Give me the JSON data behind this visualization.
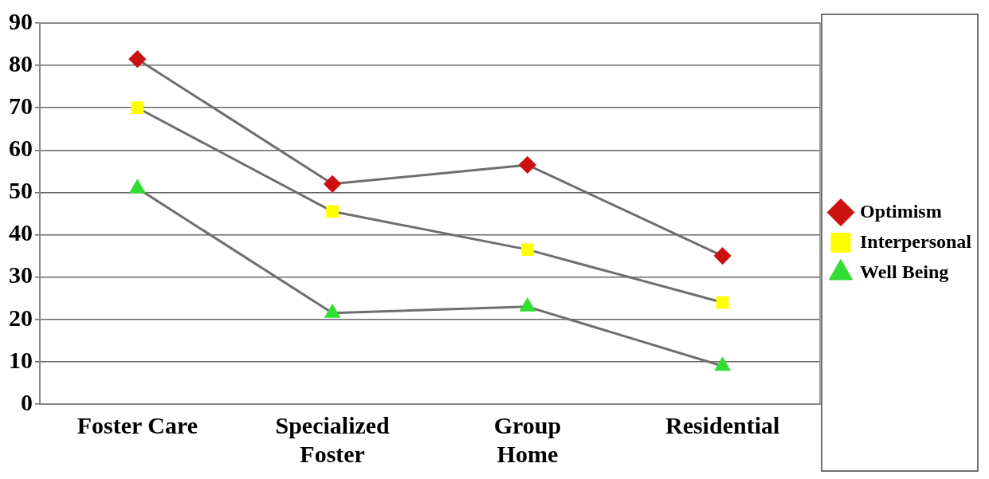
{
  "chart_data": {
    "type": "line",
    "categories": [
      "Foster Care",
      [
        "Specialized",
        "Foster"
      ],
      [
        "Group",
        "Home"
      ],
      "Residential"
    ],
    "series": [
      {
        "name": "Optimism",
        "color": "#cc1111",
        "marker": "diamond",
        "values": [
          81.5,
          52,
          56.5,
          35
        ]
      },
      {
        "name": "Interpersonal",
        "color": "#ffff00",
        "marker": "square",
        "values": [
          70,
          45.5,
          36.5,
          24
        ]
      },
      {
        "name": "Well Being",
        "color": "#33dd33",
        "marker": "triangle",
        "values": [
          51,
          21.5,
          23,
          9
        ]
      }
    ],
    "ylim": [
      0,
      90
    ],
    "yticks": [
      0,
      10,
      20,
      30,
      40,
      50,
      60,
      70,
      80,
      90
    ],
    "grid": "y",
    "legend": "right"
  }
}
